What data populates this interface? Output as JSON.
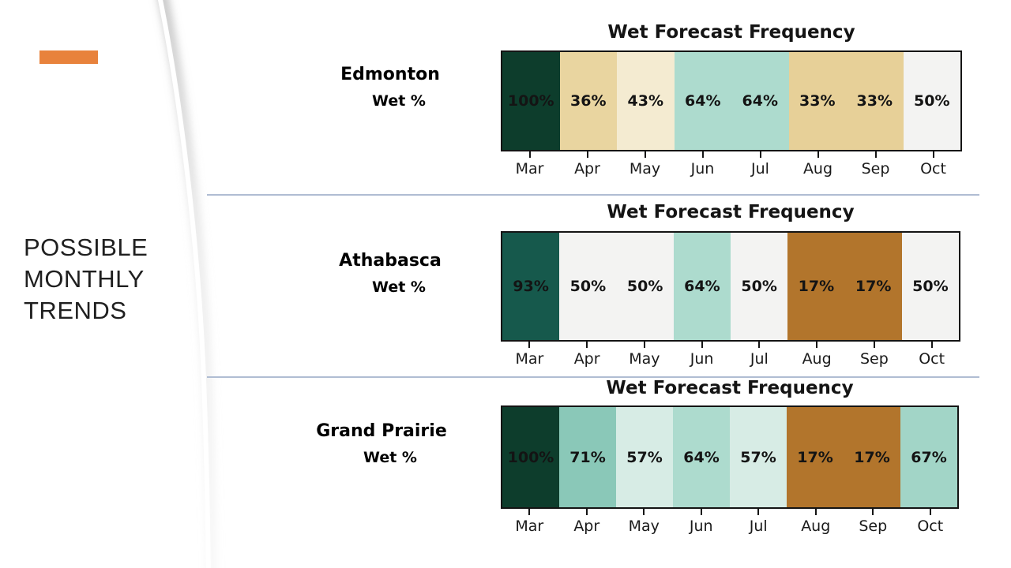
{
  "slide": {
    "title_lines": [
      "POSSIBLE",
      "MONTHLY",
      "TRENDS"
    ],
    "accent_color": "#e8823c",
    "separator_color": "#b0bdd3"
  },
  "chart_data": [
    {
      "type": "heatmap",
      "title": "Wet Forecast Frequency",
      "city": "Edmonton",
      "row_label": "Wet %",
      "categories": [
        "Mar",
        "Apr",
        "May",
        "Jun",
        "Jul",
        "Aug",
        "Sep",
        "Oct"
      ],
      "values": [
        100,
        36,
        43,
        64,
        64,
        33,
        33,
        50
      ],
      "unit": "%",
      "value_labels": [
        "100%",
        "36%",
        "43%",
        "64%",
        "64%",
        "33%",
        "33%",
        "50%"
      ],
      "cell_colors": [
        "#0d3d2c",
        "#e9d5a0",
        "#f4ebd1",
        "#addbce",
        "#addbce",
        "#e7d098",
        "#e7d098",
        "#f3f3f2"
      ],
      "colormap": "diverging brown-white-teal (BrBG), low=brown high=dark teal",
      "legend": "none",
      "grid": false
    },
    {
      "type": "heatmap",
      "title": "Wet Forecast Frequency",
      "city": "Athabasca",
      "row_label": "Wet %",
      "categories": [
        "Mar",
        "Apr",
        "May",
        "Jun",
        "Jul",
        "Aug",
        "Sep",
        "Oct"
      ],
      "values": [
        93,
        50,
        50,
        64,
        50,
        17,
        17,
        50
      ],
      "unit": "%",
      "value_labels": [
        "93%",
        "50%",
        "50%",
        "64%",
        "50%",
        "17%",
        "17%",
        "50%"
      ],
      "cell_colors": [
        "#16594c",
        "#f3f3f2",
        "#f3f3f2",
        "#addbce",
        "#f3f3f2",
        "#b2752c",
        "#b2752c",
        "#f3f3f2"
      ],
      "colormap": "diverging brown-white-teal (BrBG), low=brown high=dark teal",
      "legend": "none",
      "grid": false
    },
    {
      "type": "heatmap",
      "title": "Wet Forecast Frequency",
      "city": "Grand Prairie",
      "row_label": "Wet %",
      "categories": [
        "Mar",
        "Apr",
        "May",
        "Jun",
        "Jul",
        "Aug",
        "Sep",
        "Oct"
      ],
      "values": [
        100,
        71,
        57,
        64,
        57,
        17,
        17,
        67
      ],
      "unit": "%",
      "value_labels": [
        "100%",
        "71%",
        "57%",
        "64%",
        "57%",
        "17%",
        "17%",
        "67%"
      ],
      "cell_colors": [
        "#0d3d2c",
        "#8ac8b8",
        "#d7ece5",
        "#addbce",
        "#d7ece5",
        "#b2752c",
        "#b2752c",
        "#a2d5c7"
      ],
      "colormap": "diverging brown-white-teal (BrBG), low=brown high=dark teal",
      "legend": "none",
      "grid": false
    }
  ]
}
